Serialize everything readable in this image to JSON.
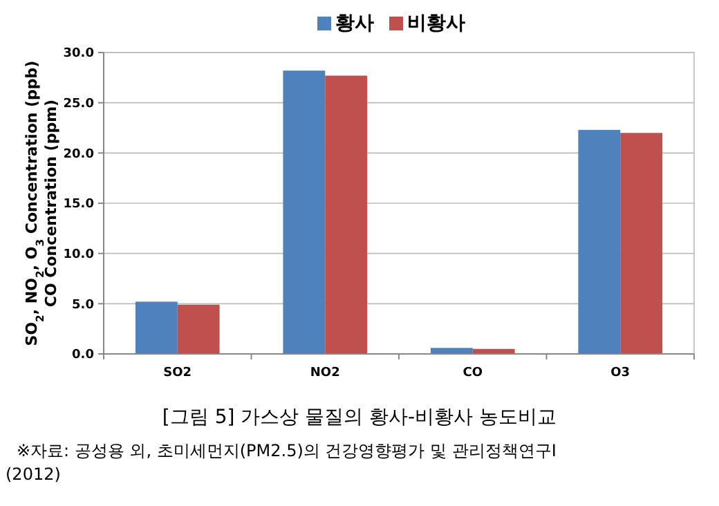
{
  "chart_data": {
    "type": "bar",
    "title": "[그림 5] 가스상 물질의 황사-비황사 농도비교",
    "ylabel": "SO$_{2}$, NO$_{2}$, O$_{3}$ Concentration  (ppb)\nCO Concentration (ppm)",
    "categories": [
      "SO2",
      "NO2",
      "CO",
      "O3"
    ],
    "series": [
      {
        "name": "황사",
        "color": "#4f81bd",
        "values": [
          5.2,
          28.2,
          0.6,
          22.3
        ]
      },
      {
        "name": "비황사",
        "color": "#c0504d",
        "values": [
          4.9,
          27.7,
          0.5,
          22.0
        ]
      }
    ],
    "ylim": [
      0,
      30
    ],
    "yticks": [
      {
        "value": 0,
        "label": "0.0"
      },
      {
        "value": 5,
        "label": "5.0"
      },
      {
        "value": 10,
        "label": "10.0"
      },
      {
        "value": 15,
        "label": "15.0"
      },
      {
        "value": 20,
        "label": "20.0"
      },
      {
        "value": 25,
        "label": "25.0"
      },
      {
        "value": 30,
        "label": "30.0"
      }
    ],
    "grid": "y",
    "legend": "top",
    "annotations": [
      "※자료:  공성용  외,  초미세먼지(PM2.5)의  건강영향평가  및  관리정책연구Ⅰ\n(2012)"
    ]
  }
}
